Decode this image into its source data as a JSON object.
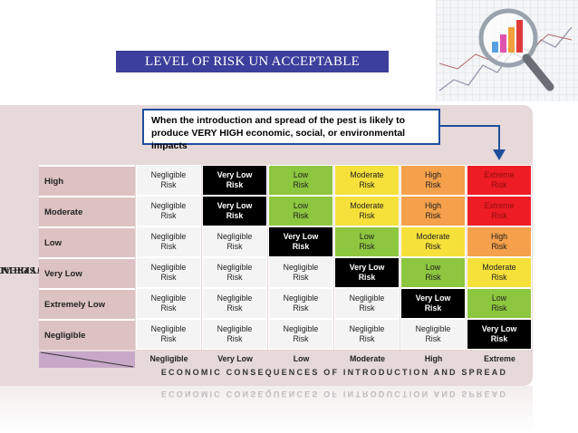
{
  "title": "LEVEL OF RISK UN ACCEPTABLE",
  "callout": "When the introduction and spread of the pest is likely to produce VERY HIGH economic, social, or environmental impacts",
  "y_axis_label_line1": "PROBABILITY OF INTRODUCTION",
  "y_axis_label_line2": "AND SPREAD",
  "x_axis_title": "ECONOMIC CONSEQUENCES OF INTRODUCTION AND SPREAD",
  "consequences": [
    "Negligible",
    "Very Low",
    "Low",
    "Moderate",
    "High",
    "Extreme"
  ],
  "rows": [
    {
      "label": "High",
      "cells": [
        {
          "l1": "Negligible",
          "l2": "Risk",
          "level": "negligible"
        },
        {
          "l1": "Very Low",
          "l2": "Risk",
          "level": "highlight"
        },
        {
          "l1": "Low",
          "l2": "Risk",
          "level": "low"
        },
        {
          "l1": "Moderate",
          "l2": "Risk",
          "level": "moderate"
        },
        {
          "l1": "High",
          "l2": "Risk",
          "level": "high"
        },
        {
          "l1": "Extreme",
          "l2": "Risk",
          "level": "extreme"
        }
      ]
    },
    {
      "label": "Moderate",
      "cells": [
        {
          "l1": "Negligible",
          "l2": "Risk",
          "level": "negligible"
        },
        {
          "l1": "Very Low",
          "l2": "Risk",
          "level": "highlight"
        },
        {
          "l1": "Low",
          "l2": "Risk",
          "level": "low"
        },
        {
          "l1": "Moderate",
          "l2": "Risk",
          "level": "moderate"
        },
        {
          "l1": "High",
          "l2": "Risk",
          "level": "high"
        },
        {
          "l1": "Extreme",
          "l2": "Risk",
          "level": "extreme"
        }
      ]
    },
    {
      "label": "Low",
      "cells": [
        {
          "l1": "Negligible",
          "l2": "Risk",
          "level": "negligible"
        },
        {
          "l1": "Negligible",
          "l2": "Risk",
          "level": "negligible"
        },
        {
          "l1": "Very Low",
          "l2": "Risk",
          "level": "highlight"
        },
        {
          "l1": "Low",
          "l2": "Risk",
          "level": "low"
        },
        {
          "l1": "Moderate",
          "l2": "Risk",
          "level": "moderate"
        },
        {
          "l1": "High",
          "l2": "Risk",
          "level": "high"
        }
      ]
    },
    {
      "label": "Very Low",
      "cells": [
        {
          "l1": "Negligible",
          "l2": "Risk",
          "level": "negligible"
        },
        {
          "l1": "Negligible",
          "l2": "Risk",
          "level": "negligible"
        },
        {
          "l1": "Negligible",
          "l2": "Risk",
          "level": "negligible"
        },
        {
          "l1": "Very Low",
          "l2": "Risk",
          "level": "highlight"
        },
        {
          "l1": "Low",
          "l2": "Risk",
          "level": "low"
        },
        {
          "l1": "Moderate",
          "l2": "Risk",
          "level": "moderate"
        }
      ]
    },
    {
      "label": "Extremely Low",
      "cells": [
        {
          "l1": "Negligible",
          "l2": "Risk",
          "level": "negligible"
        },
        {
          "l1": "Negligible",
          "l2": "Risk",
          "level": "negligible"
        },
        {
          "l1": "Negligible",
          "l2": "Risk",
          "level": "negligible"
        },
        {
          "l1": "Negligible",
          "l2": "Risk",
          "level": "negligible"
        },
        {
          "l1": "Very Low",
          "l2": "Risk",
          "level": "highlight"
        },
        {
          "l1": "Low",
          "l2": "Risk",
          "level": "low"
        }
      ]
    },
    {
      "label": "Negligible",
      "cells": [
        {
          "l1": "Negligible",
          "l2": "Risk",
          "level": "negligible"
        },
        {
          "l1": "Negligible",
          "l2": "Risk",
          "level": "negligible"
        },
        {
          "l1": "Negligible",
          "l2": "Risk",
          "level": "negligible"
        },
        {
          "l1": "Negligible",
          "l2": "Risk",
          "level": "negligible"
        },
        {
          "l1": "Negligible",
          "l2": "Risk",
          "level": "negligible"
        },
        {
          "l1": "Very Low",
          "l2": "Risk",
          "level": "highlight"
        }
      ]
    }
  ],
  "colors": {
    "negligible": "#f4f4f4",
    "highlight": "#000000",
    "low": "#8dc63f",
    "moderate": "#f6e03a",
    "high": "#f5a04a",
    "extreme": "#ee1c24",
    "title_bg": "#3c3f9b",
    "callout_border": "#1f4e9c",
    "row_label_bg": "#dcc2c2"
  },
  "decorative_image": "magnifying-glass-over-bar-chart"
}
